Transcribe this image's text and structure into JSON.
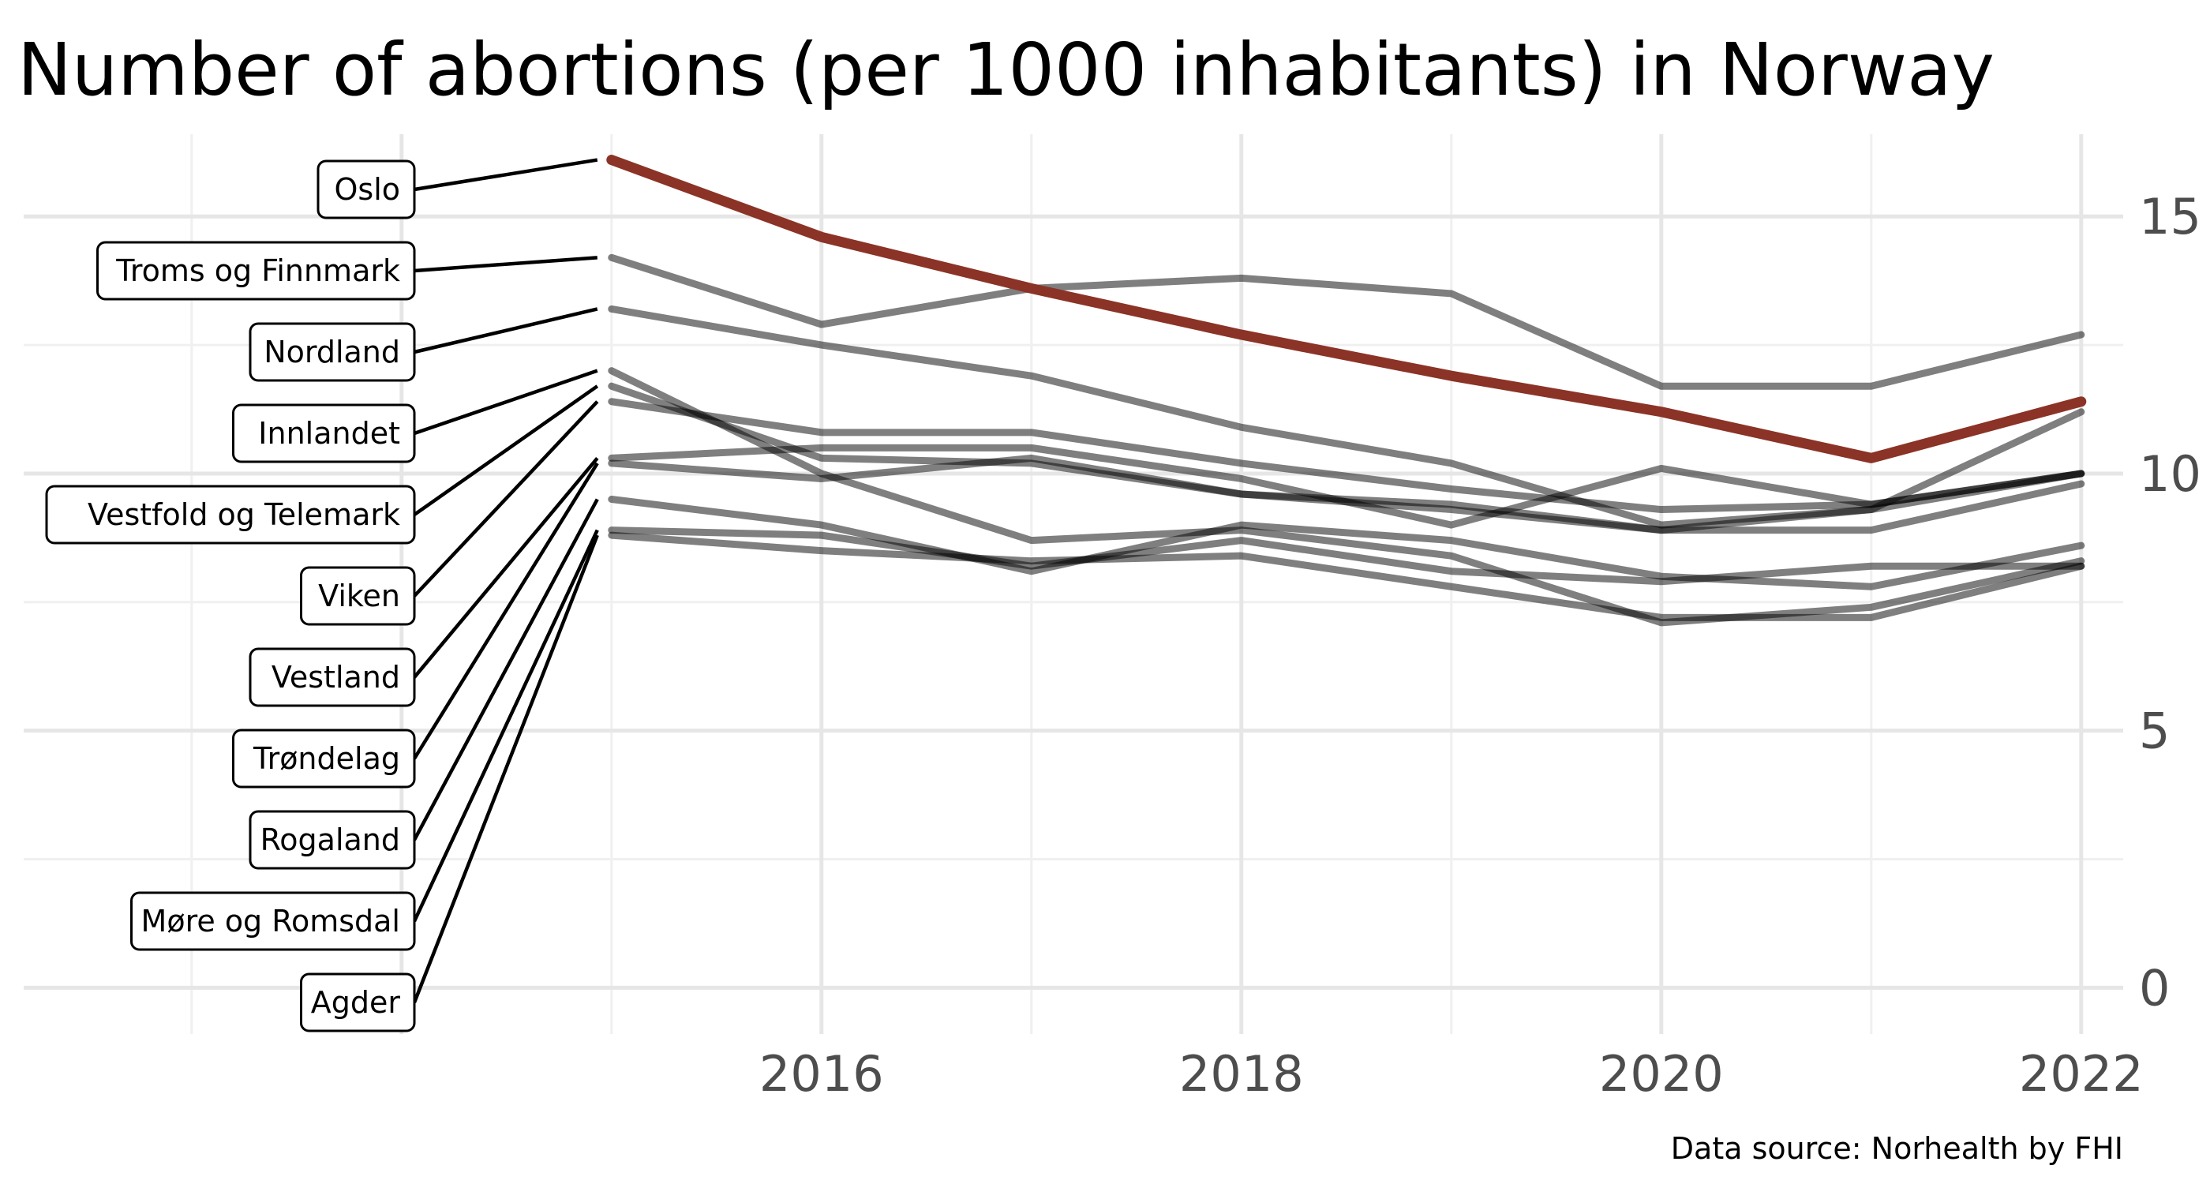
{
  "chart_data": {
    "type": "line",
    "title": "Number of abortions (per 1000 inhabitants) in Norway",
    "caption": "Data source: Norhealth by FHI",
    "xlabel": "",
    "ylabel": "",
    "x": [
      2015,
      2016,
      2017,
      2018,
      2019,
      2020,
      2021,
      2022
    ],
    "x_ticks": [
      "2016",
      "2018",
      "2020",
      "2022"
    ],
    "x_tick_values": [
      2016,
      2018,
      2020,
      2022
    ],
    "y_ticks": [
      "0",
      "5",
      "10",
      "15"
    ],
    "y_tick_values": [
      0,
      5,
      10,
      15
    ],
    "xlim": [
      2012.2,
      2022.2
    ],
    "ylim": [
      -0.9,
      16.6
    ],
    "y_axis_position": "right",
    "grid": true,
    "highlight_color": "#8B3326",
    "line_color": "#000000",
    "label_placement": "left, repelled labels with connector lines",
    "series": [
      {
        "name": "Oslo",
        "values": [
          16.1,
          14.6,
          13.6,
          12.7,
          11.9,
          11.2,
          10.3,
          11.4
        ],
        "highlight": true
      },
      {
        "name": "Troms og Finnmark",
        "values": [
          14.2,
          12.9,
          13.6,
          13.8,
          13.5,
          11.7,
          11.7,
          12.7
        ]
      },
      {
        "name": "Nordland",
        "values": [
          13.2,
          12.5,
          11.9,
          10.9,
          10.2,
          9.0,
          9.3,
          11.2
        ]
      },
      {
        "name": "Innlandet",
        "values": [
          12.0,
          10.0,
          8.7,
          8.9,
          8.4,
          7.1,
          7.4,
          8.3
        ]
      },
      {
        "name": "Vestfold og Telemark",
        "values": [
          11.7,
          10.3,
          10.2,
          9.6,
          9.3,
          8.9,
          9.3,
          10.0
        ]
      },
      {
        "name": "Viken",
        "values": [
          11.4,
          10.8,
          10.8,
          10.2,
          9.7,
          9.3,
          9.4,
          10.0
        ]
      },
      {
        "name": "Vestland",
        "values": [
          10.3,
          10.5,
          10.5,
          9.9,
          9.0,
          10.1,
          9.4,
          10.0
        ]
      },
      {
        "name": "Trøndelag",
        "values": [
          10.2,
          9.9,
          10.3,
          9.6,
          9.4,
          8.9,
          8.9,
          9.8
        ]
      },
      {
        "name": "Rogaland",
        "values": [
          9.5,
          9.0,
          8.1,
          9.0,
          8.7,
          8.0,
          7.8,
          8.6
        ]
      },
      {
        "name": "Møre og Romsdal",
        "values": [
          8.9,
          8.8,
          8.2,
          8.7,
          8.1,
          7.9,
          8.2,
          8.2
        ]
      },
      {
        "name": "Agder",
        "values": [
          8.8,
          8.5,
          8.3,
          8.4,
          7.8,
          7.2,
          7.2,
          8.2
        ]
      }
    ]
  }
}
